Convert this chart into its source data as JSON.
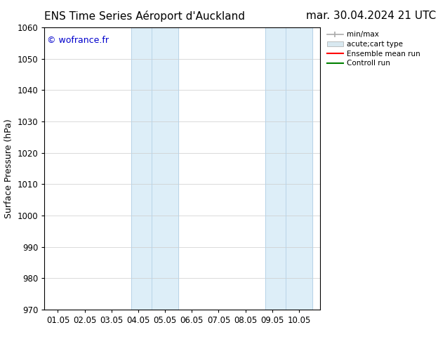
{
  "title_left": "ENS Time Series Aéroport d'Auckland",
  "title_right": "mar. 30.04.2024 21 UTC",
  "ylabel": "Surface Pressure (hPa)",
  "ylim": [
    970,
    1060
  ],
  "yticks": [
    970,
    980,
    990,
    1000,
    1010,
    1020,
    1030,
    1040,
    1050,
    1060
  ],
  "xtick_labels": [
    "01.05",
    "02.05",
    "03.05",
    "04.05",
    "05.05",
    "06.05",
    "07.05",
    "08.05",
    "09.05",
    "10.05"
  ],
  "xtick_positions": [
    0,
    1,
    2,
    3,
    4,
    5,
    6,
    7,
    8,
    9
  ],
  "xlim_start": -0.5,
  "xlim_end": 9.8,
  "shaded_bands": [
    {
      "x_start": 2.75,
      "x_end": 3.5,
      "color": "#ddeef8"
    },
    {
      "x_start": 3.5,
      "x_end": 4.5,
      "color": "#ddeef8"
    },
    {
      "x_start": 7.75,
      "x_end": 8.5,
      "color": "#ddeef8"
    },
    {
      "x_start": 8.5,
      "x_end": 9.5,
      "color": "#ddeef8"
    }
  ],
  "band_line_color": "#b8d4e8",
  "watermark_text": "© wofrance.fr",
  "watermark_color": "#0000cc",
  "bg_color": "#ffffff",
  "plot_bg_color": "#ffffff",
  "grid_color": "#cccccc",
  "title_fontsize": 11,
  "tick_fontsize": 8.5,
  "ylabel_fontsize": 9,
  "legend_fontsize": 7.5
}
